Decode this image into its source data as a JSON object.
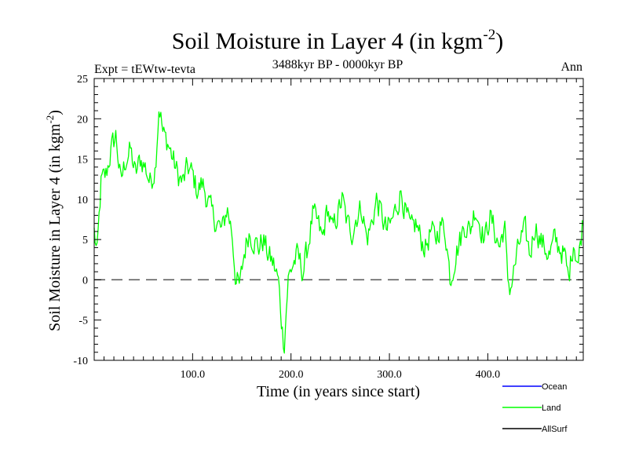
{
  "chart_data": {
    "type": "line",
    "title": "Soil Moisture in Layer 4 (in kgm",
    "title_sup": "-2",
    "title_close": ")",
    "subtitle": "3488kyr BP - 0000kyr BP",
    "expt_label": "Expt = tEWtw-tevta",
    "season_label": "Ann",
    "xlabel": "Time (in years since start)",
    "ylabel": "Soil Moisture in Layer 4 (in kgm",
    "ylabel_sup": "-2",
    "ylabel_close": ")",
    "xlim": [
      0,
      497
    ],
    "ylim": [
      -10,
      25
    ],
    "x_ticks": [
      100,
      200,
      300,
      400
    ],
    "x_tick_labels": [
      "100.0",
      "200.0",
      "300.0",
      "400.0"
    ],
    "y_ticks": [
      -10,
      -5,
      0,
      5,
      10,
      15,
      20,
      25
    ],
    "y_tick_labels": [
      "-10",
      "-5",
      "0",
      "5",
      "10",
      "15",
      "20",
      "25"
    ],
    "reference_line": 0,
    "legend_position": "bottom-right",
    "legend": [
      {
        "name": "Ocean",
        "color": "#0000ff"
      },
      {
        "name": "Land",
        "color": "#00ff00"
      },
      {
        "name": "AllSurf",
        "color": "#000000"
      }
    ],
    "series": [
      {
        "name": "Land",
        "color": "#00ff00",
        "anchors_x": [
          0,
          3,
          7,
          12,
          17,
          22,
          27,
          32,
          37,
          42,
          47,
          52,
          57,
          62,
          66,
          70,
          75,
          80,
          85,
          90,
          95,
          100,
          105,
          110,
          115,
          120,
          125,
          130,
          135,
          140,
          144,
          148,
          152,
          157,
          162,
          167,
          172,
          177,
          182,
          187,
          191,
          193,
          197,
          202,
          207,
          212,
          217,
          222,
          227,
          232,
          237,
          242,
          247,
          252,
          257,
          262,
          267,
          272,
          277,
          282,
          287,
          292,
          297,
          302,
          307,
          312,
          317,
          322,
          327,
          332,
          337,
          342,
          347,
          352,
          357,
          362,
          367,
          372,
          377,
          382,
          387,
          392,
          397,
          402,
          407,
          412,
          417,
          420,
          423,
          428,
          433,
          438,
          443,
          448,
          453,
          458,
          463,
          468,
          473,
          478,
          482,
          487,
          492,
          497
        ],
        "anchors_y": [
          6,
          3,
          12,
          13,
          16,
          18,
          12,
          15,
          16,
          13,
          15,
          14,
          12,
          14,
          22,
          18,
          17,
          15,
          13,
          12,
          14,
          13,
          11,
          12,
          10,
          8,
          7,
          6,
          9,
          6,
          0,
          -1,
          3,
          6,
          5,
          4,
          5,
          3,
          2,
          0,
          -6,
          -8,
          0,
          2,
          3,
          1,
          4,
          8,
          7,
          5,
          9,
          6,
          8,
          10,
          7,
          6,
          8,
          9,
          5,
          7,
          10,
          8,
          6,
          7,
          9,
          11,
          8,
          6,
          7,
          5,
          4,
          6,
          5,
          7,
          6,
          0,
          3,
          5,
          7,
          6,
          9,
          7,
          5,
          8,
          6,
          4,
          7,
          0,
          -1,
          2,
          5,
          6,
          3,
          7,
          5,
          4,
          3,
          5,
          4,
          3,
          0,
          5,
          2,
          8
        ],
        "amplitude": 2.3,
        "samples": 500
      }
    ]
  }
}
